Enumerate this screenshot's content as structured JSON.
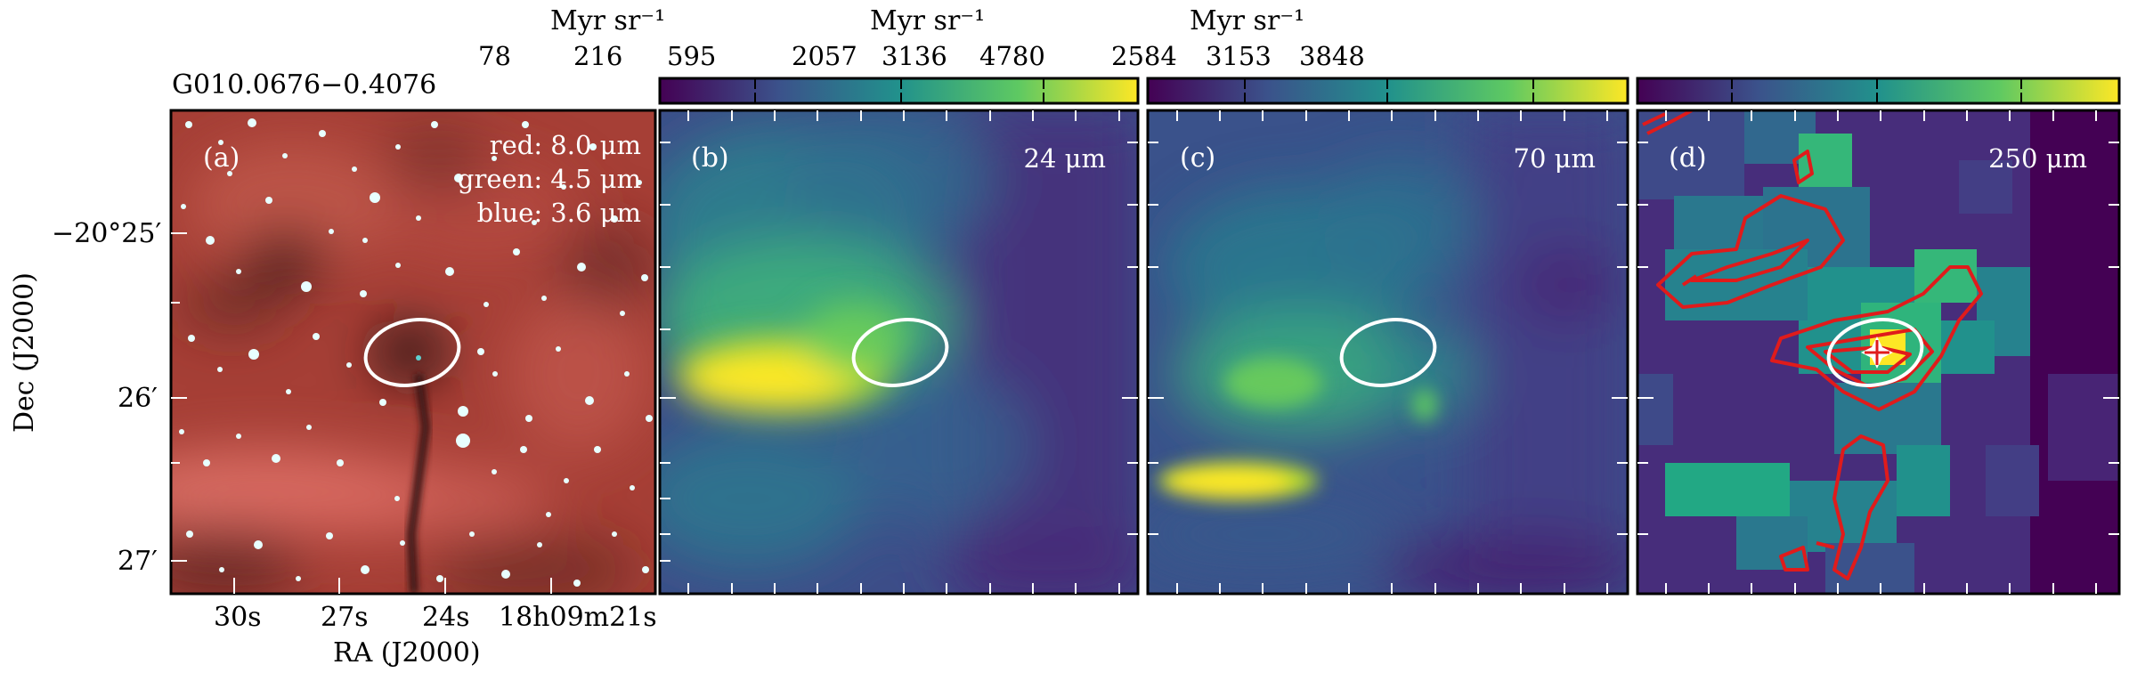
{
  "figure": {
    "source_name": "G010.0676−0.4076",
    "xaxis_label": "RA (J2000)",
    "yaxis_label": "Dec (J2000)",
    "ra_ticks": [
      "30s",
      "27s",
      "24s",
      "18h09m21s"
    ],
    "dec_ticks": [
      "−20°25′",
      "26′",
      "27′"
    ]
  },
  "panels": [
    {
      "id": "a",
      "label": "(a)",
      "kind": "rgb",
      "channels": [
        "red: 8.0 μm",
        "green: 4.5 μm",
        "blue: 3.6 μm"
      ]
    },
    {
      "id": "b",
      "label": "(b)",
      "kind": "map",
      "band": "24 μm",
      "colorbar": {
        "unit": "Myr sr⁻¹",
        "ticks": [
          "78",
          "216",
          "595"
        ]
      }
    },
    {
      "id": "c",
      "label": "(c)",
      "kind": "map",
      "band": "70 μm",
      "colorbar": {
        "unit": "Myr sr⁻¹",
        "ticks": [
          "2057",
          "3136",
          "4780"
        ]
      }
    },
    {
      "id": "d",
      "label": "(d)",
      "kind": "map",
      "band": "250 μm",
      "colorbar": {
        "unit": "Myr sr⁻¹",
        "ticks": [
          "2584",
          "3153",
          "3848"
        ]
      }
    }
  ],
  "colors": {
    "colormap": [
      "#440154",
      "#3b528b",
      "#21918c",
      "#5ec962",
      "#fde725"
    ],
    "ellipse": "#ffffff",
    "contour": "#e01b1b",
    "rgb_base": "#b8493e"
  }
}
